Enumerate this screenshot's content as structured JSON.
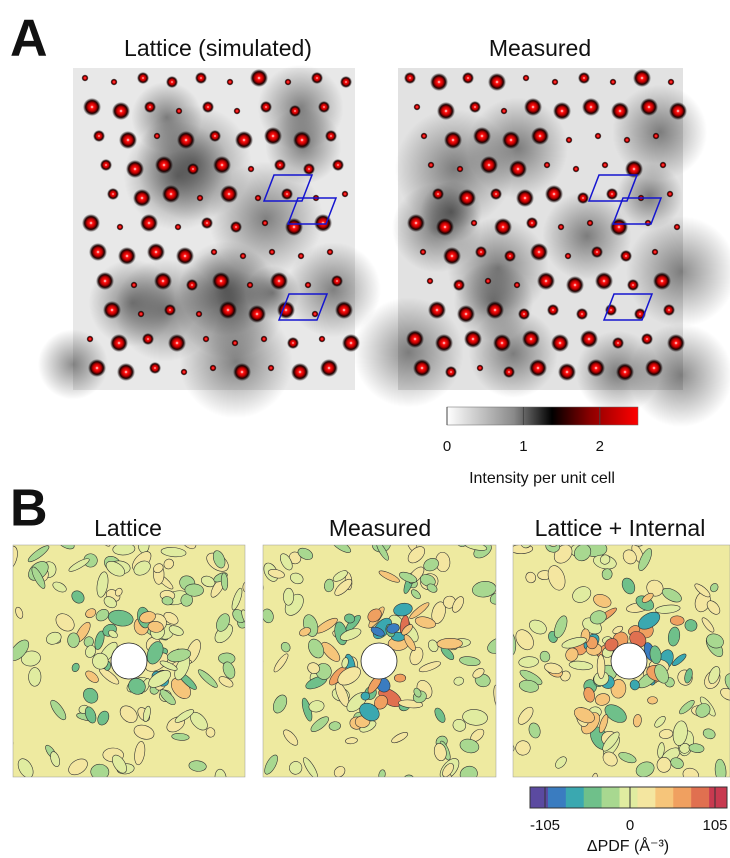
{
  "panel_a": {
    "label": "A",
    "images": [
      {
        "title": "Lattice (simulated)"
      },
      {
        "title": "Measured"
      }
    ],
    "colorbar": {
      "ticks": [
        0,
        1,
        2
      ],
      "label": "Intensity per unit cell"
    }
  },
  "panel_b": {
    "label": "B",
    "images": [
      {
        "title": "Lattice"
      },
      {
        "title": "Measured"
      },
      {
        "title": "Lattice + Internal"
      }
    ],
    "colorbar": {
      "ticks": [
        -105,
        0,
        105
      ],
      "label": "ΔPDF (Å⁻³)"
    }
  }
}
